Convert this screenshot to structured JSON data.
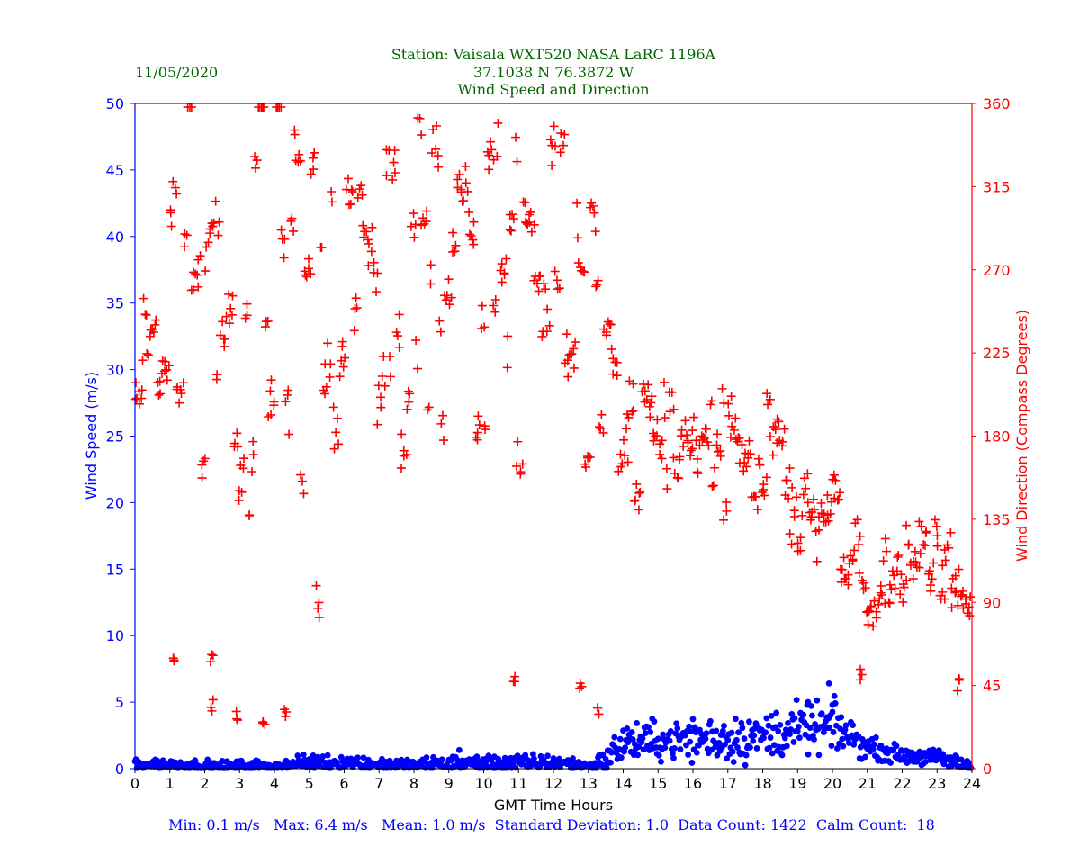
{
  "header": {
    "date": "11/05/2020",
    "station": "Station:  Vaisala WXT520  NASA LaRC 1196A",
    "coords": "37.1038 N 76.3872 W",
    "subtitle": "Wind Speed and Direction"
  },
  "stats": "Min: 0.1 m/s   Max: 6.4 m/s   Mean: 1.0 m/s  Standard Deviation: 1.0  Data Count: 1422  Calm Count:  18",
  "colors": {
    "title": "#006400",
    "speed": "#0000ff",
    "direction": "#ff0000",
    "axis": "#000000"
  },
  "chart_data": {
    "type": "scatter",
    "title": "Wind Speed and Direction",
    "xlabel": "GMT Time Hours",
    "ylabel": "Wind Speed (m/s)",
    "y2label": "Wind Direction (Compass Degrees)",
    "xlim": [
      0,
      24
    ],
    "ylim": [
      0,
      50
    ],
    "y2lim": [
      0,
      360
    ],
    "xticks": [
      "0",
      "1",
      "2",
      "3",
      "4",
      "5",
      "6",
      "7",
      "8",
      "9",
      "10",
      "11",
      "12",
      "13",
      "14",
      "15",
      "16",
      "17",
      "18",
      "19",
      "20",
      "21",
      "22",
      "23",
      "24"
    ],
    "yticks": [
      "0",
      "5",
      "10",
      "15",
      "20",
      "25",
      "30",
      "35",
      "40",
      "45",
      "50"
    ],
    "y2ticks": [
      "0",
      "45",
      "90",
      "135",
      "180",
      "225",
      "270",
      "315",
      "360"
    ],
    "speed_profile": {
      "hours": [
        0,
        1,
        2,
        3,
        4,
        5,
        6,
        7,
        8,
        9,
        10,
        11,
        12,
        13,
        13.5,
        14,
        15,
        16,
        17,
        18,
        19,
        20,
        20.5,
        21,
        22,
        23,
        23.5,
        24
      ],
      "mean_mps": [
        0.4,
        0.3,
        0.2,
        0.2,
        0.2,
        0.5,
        0.5,
        0.3,
        0.3,
        0.4,
        0.4,
        0.4,
        0.5,
        0.2,
        0.6,
        2.0,
        2.1,
        2.2,
        2.3,
        2.4,
        3.0,
        3.1,
        2.5,
        1.6,
        1.0,
        0.8,
        0.5,
        0.2
      ],
      "spread_mps": [
        0.3,
        0.2,
        0.2,
        0.2,
        0.2,
        0.3,
        0.3,
        0.2,
        0.2,
        0.3,
        0.3,
        0.3,
        0.3,
        0.2,
        0.5,
        0.7,
        0.7,
        0.8,
        0.9,
        0.9,
        0.9,
        0.9,
        0.7,
        0.4,
        0.3,
        0.3,
        0.3,
        0.2
      ],
      "points_per_hour": 36,
      "peaks": [
        {
          "hour": 19.9,
          "mps": 6.4
        },
        {
          "hour": 19.3,
          "mps": 5.0
        },
        {
          "hour": 20.0,
          "mps": 4.8
        },
        {
          "hour": 9.3,
          "mps": 1.4
        }
      ]
    },
    "direction_profile": {
      "hours": [
        0,
        1,
        2,
        3,
        4,
        5,
        6,
        7,
        8,
        9,
        10,
        11,
        12,
        13,
        13.5,
        14,
        15,
        16,
        17,
        18,
        19,
        20,
        21,
        22,
        23,
        23.5,
        24
      ],
      "center_deg": [
        195,
        230,
        240,
        255,
        250,
        255,
        260,
        265,
        255,
        250,
        265,
        270,
        280,
        265,
        200,
        180,
        165,
        170,
        175,
        160,
        140,
        125,
        105,
        105,
        110,
        85,
        90
      ],
      "spread_deg": [
        25,
        60,
        85,
        80,
        75,
        60,
        65,
        50,
        50,
        60,
        50,
        50,
        35,
        50,
        25,
        20,
        20,
        20,
        25,
        20,
        15,
        15,
        12,
        12,
        12,
        25,
        15
      ],
      "points_per_hour": 30,
      "low_outliers": [
        {
          "hour": 2.2,
          "deg": 35
        },
        {
          "hour": 2.9,
          "deg": 28
        },
        {
          "hour": 4.3,
          "deg": 30
        },
        {
          "hour": 1.1,
          "deg": 58
        },
        {
          "hour": 2.2,
          "deg": 60
        },
        {
          "hour": 12.8,
          "deg": 45
        },
        {
          "hour": 13.3,
          "deg": 30
        },
        {
          "hour": 10.9,
          "deg": 46
        },
        {
          "hour": 20.8,
          "deg": 50
        },
        {
          "hour": 23.6,
          "deg": 45
        },
        {
          "hour": 3.7,
          "deg": 24
        }
      ]
    }
  }
}
